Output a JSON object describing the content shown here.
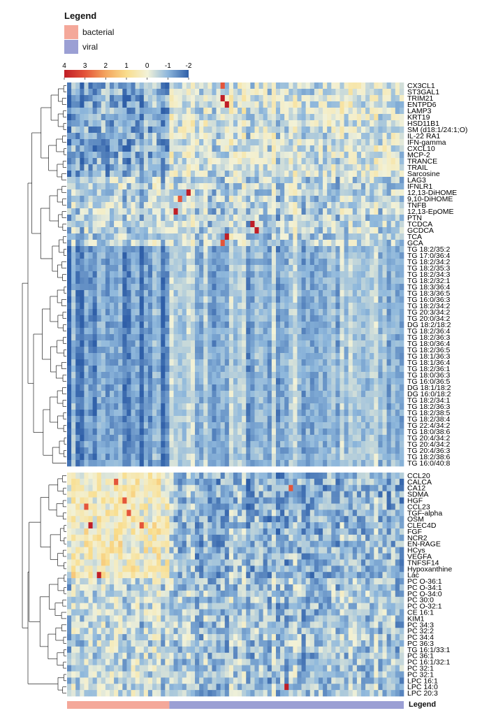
{
  "legend": {
    "title": "Legend",
    "items": [
      {
        "label": "bacterial",
        "color": "#f4a89a"
      },
      {
        "label": "viral",
        "color": "#9b9fd4"
      }
    ]
  },
  "bottom_legend_label": "Legend",
  "chart_data": {
    "type": "heatmap",
    "title": "",
    "color_scale": {
      "ticks": [
        "4",
        "3",
        "2",
        "1",
        "0",
        "-1",
        "-2"
      ],
      "min": -2,
      "max": 4,
      "colors": {
        "-2": "#2f5fa8",
        "-1": "#8fb8dc",
        "0": "#f2f2d8",
        "1": "#f9dd8c",
        "2": "#f3a45e",
        "3": "#e4553a",
        "4": "#c01e26"
      }
    },
    "columns": {
      "bacterial_count": 24,
      "viral_count": 55,
      "total": 79
    },
    "annotation_colors": {
      "bacterial": "#f4a89a",
      "viral": "#9b9fd4"
    },
    "row_groups": [
      {
        "name": "top",
        "rows": [
          "CX3CL1",
          "ST3GAL1",
          "TRIM21",
          "ENTPD6",
          "LAMP3",
          "KRT19",
          "HSD11B1",
          "SM (d18:1/24:1;O)",
          "IL-22 RA1",
          "IFN-gamma",
          "CXCL10",
          "MCP-2",
          "TRANCE",
          "TRAIL",
          "Sarcosine",
          "LAG3",
          "IFNLR1",
          "12,13-DiHOME",
          "9,10-DiHOME",
          "TNFB",
          "12,13-EpOME",
          "PTN",
          "TCDCA",
          "GCDCA",
          "TCA",
          "GCA",
          "TG 18:2/35:2",
          "TG 17:0/36:4",
          "TG 18:2/34:2",
          "TG 18:2/35:3",
          "TG 18:2/34:3",
          "TG 18:2/32:1",
          "TG 18:3/36:4",
          "TG 18:3/36:5",
          "TG 16:0/36:3",
          "TG 18:2/34:2",
          "TG 20:3/34:2",
          "TG 20:0/34:2",
          "DG 18:2/18:2",
          "TG 18:2/36:4",
          "TG 18:2/36:3",
          "TG 18:0/36:4",
          "TG 18:2/36:5",
          "TG 18:1/36:3",
          "TG 18:1/36:4",
          "TG 18:2/36:1",
          "TG 18:0/36:3",
          "TG 16:0/36:5",
          "DG 18:1/18:2",
          "DG 16:0/18:2",
          "TG 18:2/34:1",
          "TG 18:2/36:3",
          "TG 18:2/38:5",
          "TG 18:2/38:4",
          "TG 22:4/34:2",
          "TG 18:0/38:6",
          "TG 20:4/34:2",
          "TG 20:4/34:2",
          "TG 20:4/36:3",
          "TG 18:2/38:6",
          "TG 16:0/40:8"
        ]
      },
      {
        "name": "bottom",
        "rows": [
          "CCL20",
          "CALCA",
          "CA12",
          "SDMA",
          "HGF",
          "CCL23",
          "TGF-alpha",
          "OSM",
          "CLEC4D",
          "FGF",
          "NCR2",
          "EN-RAGE",
          "HCys",
          "VEGFA",
          "TNFSF14",
          "Hypoxanthine",
          "Lac",
          "PC O-36:1",
          "PC O-34:1",
          "PC O-34:0",
          "PC 30:0",
          "PC O-32:1",
          "CE 16:1",
          "KIM1",
          "PC 34:3",
          "PC 32:2",
          "PC 34:4",
          "PC 36:3",
          "TG 16:1/33:1",
          "PC 36:1",
          "PC 16:1/32:1",
          "PC 32:1",
          "PC 32:1",
          "LPC 16:1",
          "LPC 14:0",
          "LPC 20:3"
        ]
      }
    ],
    "hot_spots": [
      {
        "row": "12,13-DiHOME",
        "col": 28,
        "value": 4
      },
      {
        "row": "9,10-DiHOME",
        "col": 26,
        "value": 3
      },
      {
        "row": "12,13-EpOME",
        "col": 25,
        "value": 4
      },
      {
        "row": "TCDCA",
        "col": 43,
        "value": 4
      },
      {
        "row": "GCDCA",
        "col": 44,
        "value": 4
      },
      {
        "row": "TCA",
        "col": 37,
        "value": 4
      },
      {
        "row": "GCA",
        "col": 36,
        "value": 3
      },
      {
        "row": "CX3CL1",
        "col": 36,
        "value": 3
      },
      {
        "row": "TRIM21",
        "col": 36,
        "value": 4
      },
      {
        "row": "ENTPD6",
        "col": 37,
        "value": 4
      },
      {
        "row": "CALCA",
        "col": 11,
        "value": 3
      },
      {
        "row": "HGF",
        "col": 13,
        "value": 3
      },
      {
        "row": "CCL23",
        "col": 4,
        "value": 3
      },
      {
        "row": "CLEC4D",
        "col": 5,
        "value": 4
      },
      {
        "row": "CLEC4D",
        "col": 17,
        "value": 3
      },
      {
        "row": "TGF-alpha",
        "col": 14,
        "value": 3
      },
      {
        "row": "Lac",
        "col": 7,
        "value": 4
      },
      {
        "row": "LPC 14:0",
        "col": 51,
        "value": 4
      },
      {
        "row": "CA12",
        "col": 52,
        "value": 3
      }
    ]
  }
}
